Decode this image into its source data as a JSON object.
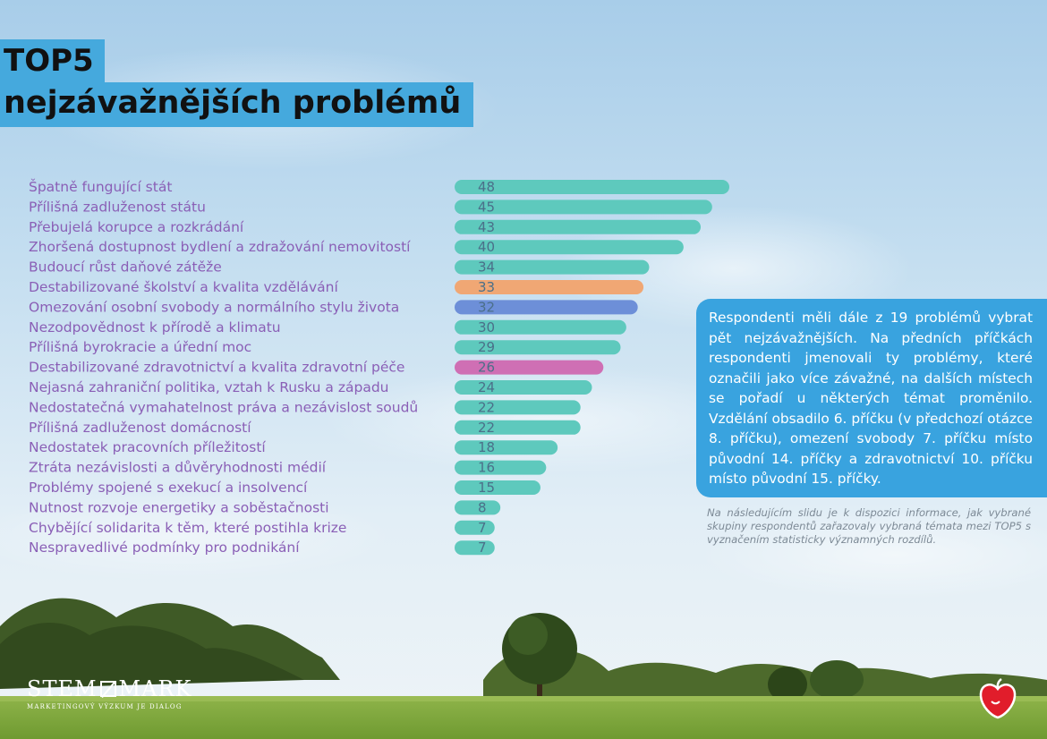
{
  "title": {
    "line1": "TOP5",
    "line2": "nejzávažnějších problémů"
  },
  "chart_data": {
    "type": "bar",
    "orientation": "horizontal",
    "categories": [
      "Špatně fungující stát",
      "Přílišná zadluženost státu",
      "Přebujelá korupce a rozkrádání",
      "Zhoršená dostupnost bydlení a zdražování nemovitostí",
      "Budoucí růst daňové zátěže",
      "Destabilizované školství a kvalita vzdělávání",
      "Omezování osobní svobody a normálního stylu života",
      "Nezodpovědnost k přírodě a klimatu",
      "Přílišná byrokracie a úřední moc",
      "Destabilizované zdravotnictví a kvalita zdravotní péče",
      "Nejasná zahraniční politika, vztah k Rusku a západu",
      "Nedostatečná vymahatelnost práva a nezávislost soudů",
      "Přílišná zadluženost domácností",
      "Nedostatek pracovních příležitostí",
      "Ztráta nezávislosti a důvěryhodnosti médií",
      "Problémy spojené s exekucí a insolvencí",
      "Nutnost rozvoje energetiky a soběstačnosti",
      "Chybějící solidarita k těm, které postihla krize",
      "Nespravedlivé podmínky pro podnikání"
    ],
    "values": [
      48,
      45,
      43,
      40,
      34,
      33,
      32,
      30,
      29,
      26,
      24,
      22,
      22,
      18,
      16,
      15,
      8,
      7,
      7
    ],
    "colors": {
      "default": "#5ec9bd",
      "highlight_education": "#f0a774",
      "highlight_freedom": "#6d8fd8",
      "highlight_health": "#cf6fb4"
    },
    "bar_colors": [
      "default",
      "default",
      "default",
      "default",
      "default",
      "highlight_education",
      "highlight_freedom",
      "default",
      "default",
      "highlight_health",
      "default",
      "default",
      "default",
      "default",
      "default",
      "default",
      "default",
      "default",
      "default"
    ],
    "xlim": [
      0,
      48
    ],
    "grid": false,
    "legend": "none"
  },
  "info_box": {
    "text": "Respondenti měli dále z 19 problémů vybrat pět nejzávažnějších. Na předních příčkách respondenti jmenovali ty problémy, které označili jako více závažné, na dalších místech se pořadí u některých témat proměnilo. Vzdělání obsadilo 6. příčku (v předchozí otázce 8. příčku), omezení svobody 7. příčku místo původní 14. příčky a zdravotnictví 10. příčku místo původní 15. příčky."
  },
  "note": {
    "text": "Na následujícím slidu je k dispozici informace, jak vybrané skupiny respondentů zařazovaly vybraná témata mezi TOP5 s vyznačením statisticky významných rozdílů."
  },
  "logo": {
    "left": "STEM",
    "right": "MARK",
    "tagline": "MARKETINGOVÝ VÝZKUM JE DIALOG"
  }
}
